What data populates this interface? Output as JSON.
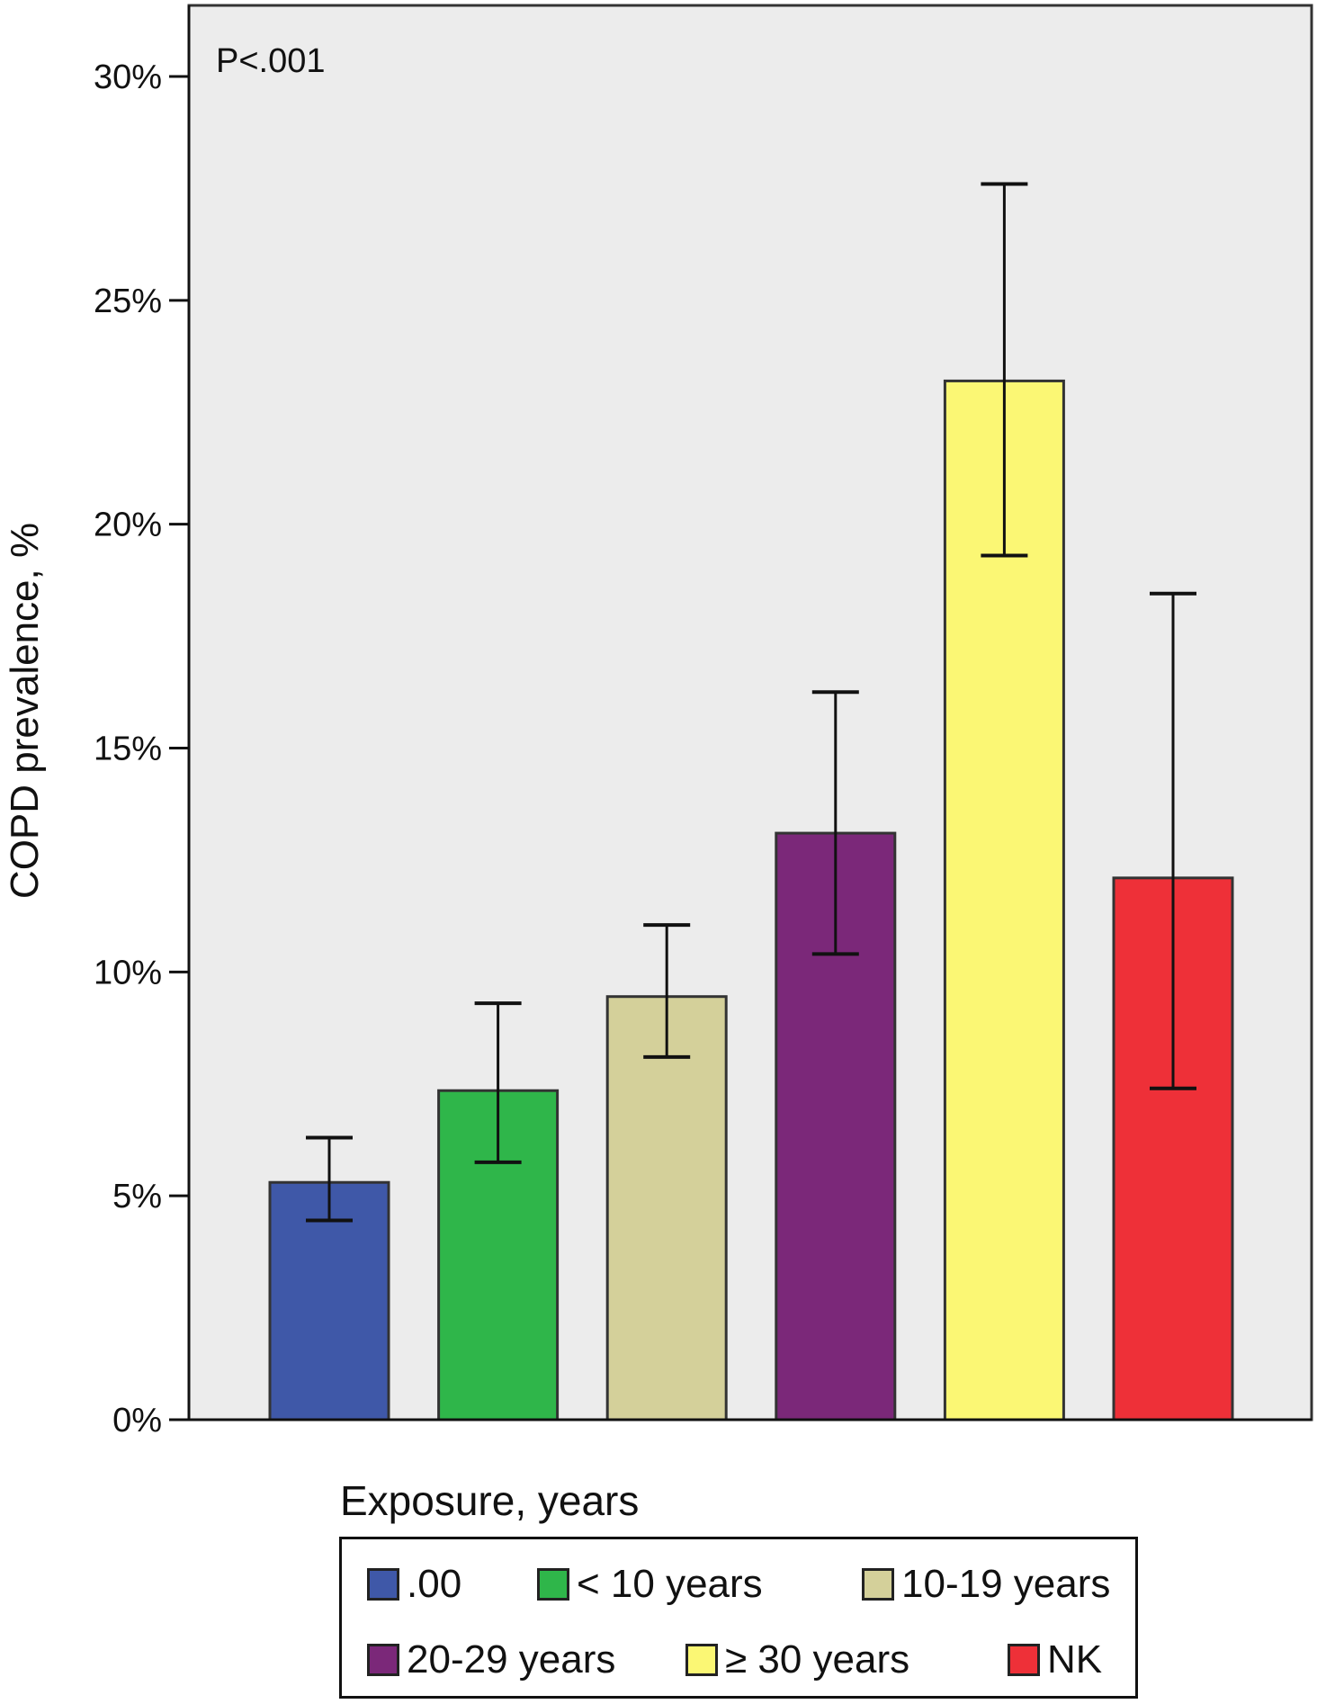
{
  "chart_data": {
    "type": "bar",
    "title": "",
    "annotation": "P<.001",
    "xlabel": "",
    "ylabel": "COPD prevalence, %",
    "ylim": [
      0,
      30
    ],
    "yticks": [
      "0%",
      "5%",
      "10%",
      "15%",
      "20%",
      "25%",
      "30%"
    ],
    "ytick_values": [
      0,
      5,
      10,
      15,
      20,
      25,
      30
    ],
    "grid": false,
    "legend": {
      "title": "Exposure, years",
      "placement": "bottom"
    },
    "categories": [
      ".00",
      "< 10 years",
      "10-19 years",
      "20-29 years",
      "≥ 30 years",
      "NK"
    ],
    "values": [
      5.3,
      7.35,
      9.45,
      13.1,
      23.2,
      12.1
    ],
    "error_low": [
      4.45,
      5.75,
      8.1,
      10.4,
      19.3,
      7.4
    ],
    "error_high": [
      6.3,
      9.3,
      11.05,
      16.25,
      27.6,
      18.45
    ],
    "colors": [
      "#3f58a8",
      "#2fb64a",
      "#d4d09a",
      "#7b2879",
      "#fbf774",
      "#ee3038"
    ]
  }
}
